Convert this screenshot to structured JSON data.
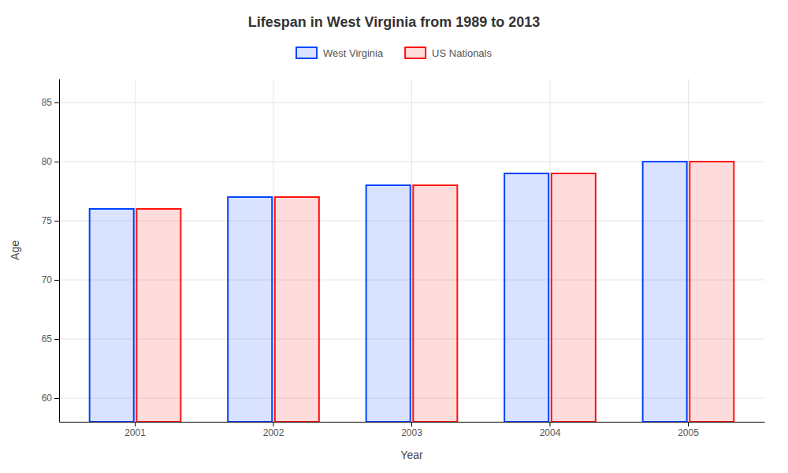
{
  "chart_data": {
    "type": "bar",
    "title": "Lifespan in West Virginia from 1989 to 2013",
    "xlabel": "Year",
    "ylabel": "Age",
    "categories": [
      "2001",
      "2002",
      "2003",
      "2004",
      "2005"
    ],
    "series": [
      {
        "name": "West Virginia",
        "color": "#0044ff",
        "values": [
          76,
          77,
          78,
          79,
          80
        ]
      },
      {
        "name": "US Nationals",
        "color": "#ff1111",
        "values": [
          76,
          77,
          78,
          79,
          80
        ]
      }
    ],
    "ylim": [
      58,
      87
    ],
    "yticks": [
      60,
      65,
      70,
      75,
      80,
      85
    ],
    "grid": true,
    "legend": "top"
  }
}
